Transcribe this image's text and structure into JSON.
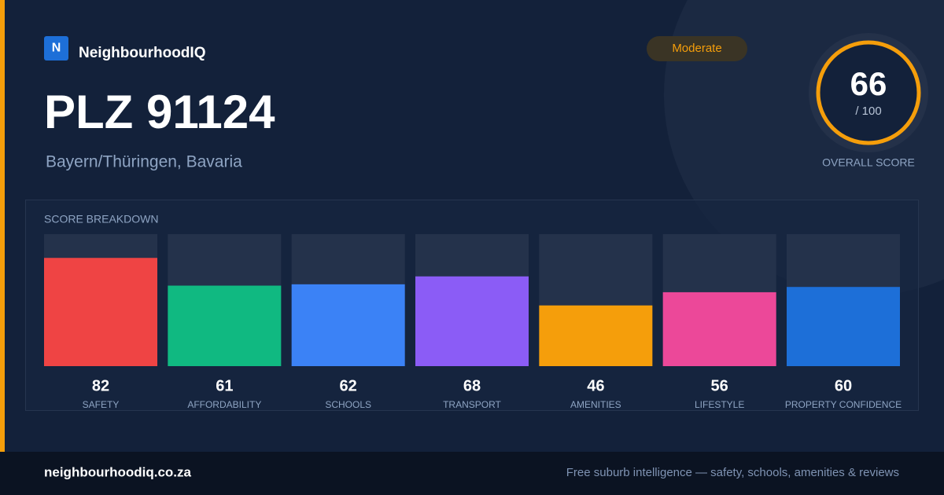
{
  "brand": {
    "logo": "N",
    "name": "NeighbourhoodIQ"
  },
  "header": {
    "title": "PLZ 91124",
    "subtitle": "Bayern/Thüringen, Bavaria"
  },
  "badge": "Moderate",
  "overall": {
    "score": 66,
    "max_label": "/ 100",
    "label": "OVERALL SCORE"
  },
  "chart_data": {
    "type": "bar",
    "title": "SCORE BREAKDOWN",
    "categories": [
      "SAFETY",
      "AFFORDABILITY",
      "SCHOOLS",
      "TRANSPORT",
      "AMENITIES",
      "LIFESTYLE",
      "PROPERTY CONFIDENCE"
    ],
    "values": [
      82,
      61,
      62,
      68,
      46,
      56,
      60
    ],
    "colors": [
      "#ef4444",
      "#10b981",
      "#3b82f6",
      "#8b5cf6",
      "#f59e0b",
      "#ec4899",
      "#1d6fd8"
    ],
    "ylim": [
      0,
      100
    ]
  },
  "footer": {
    "site": "neighbourhoodiq.co.za",
    "tagline": "Free suburb intelligence — safety, schools, amenities & reviews"
  }
}
